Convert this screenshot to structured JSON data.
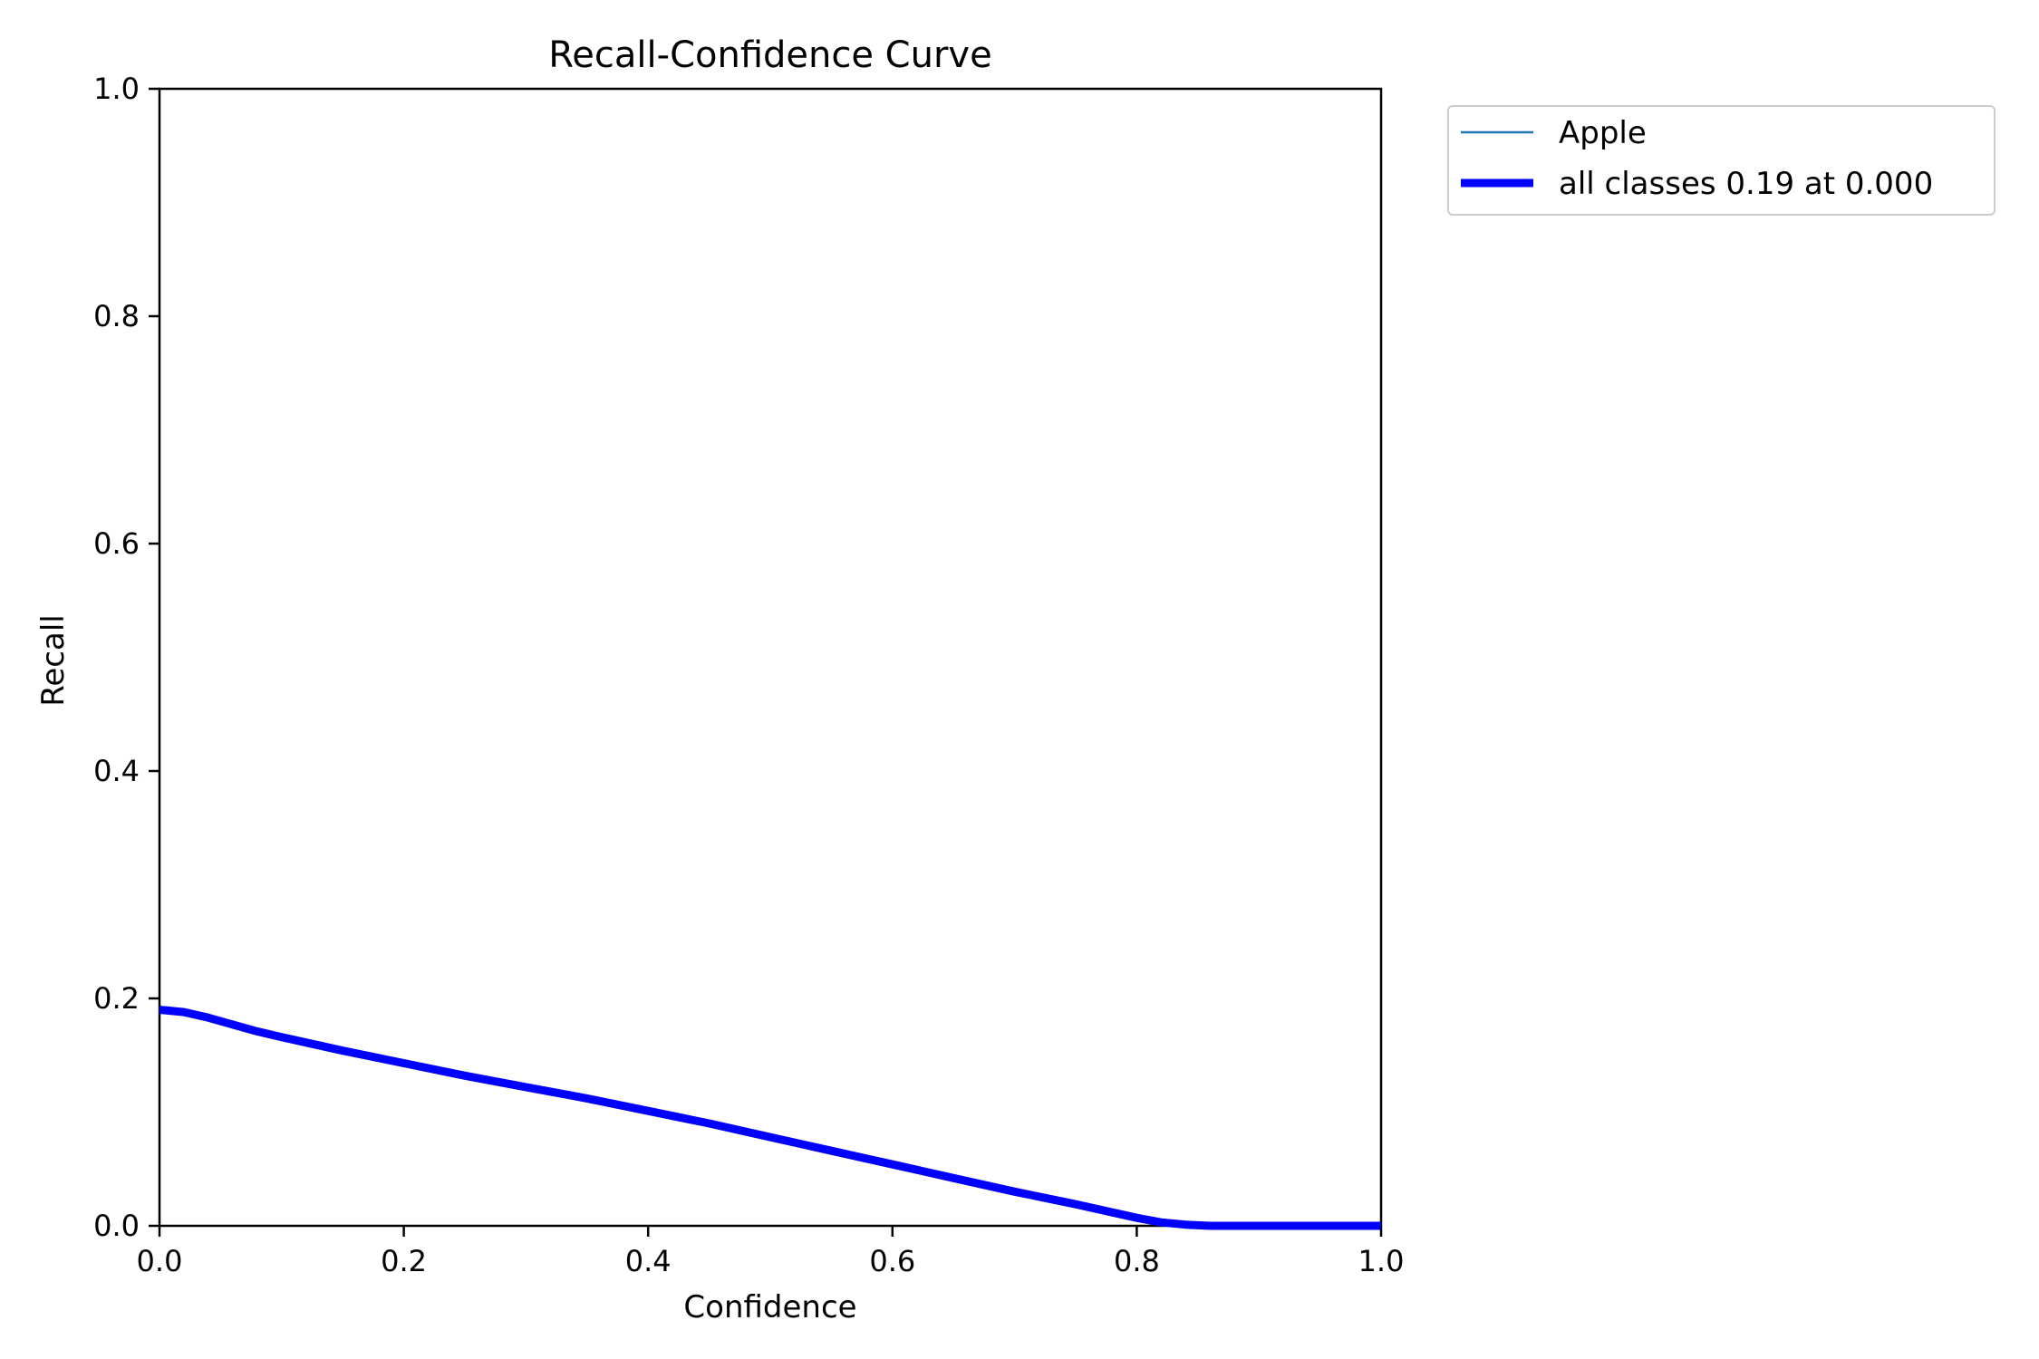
{
  "chart_data": {
    "type": "line",
    "title": "Recall-Confidence Curve",
    "xlabel": "Confidence",
    "ylabel": "Recall",
    "xlim": [
      0.0,
      1.0
    ],
    "ylim": [
      0.0,
      1.0
    ],
    "xticks": [
      "0.0",
      "0.2",
      "0.4",
      "0.6",
      "0.8",
      "1.0"
    ],
    "yticks": [
      "0.0",
      "0.2",
      "0.4",
      "0.6",
      "0.8",
      "1.0"
    ],
    "grid": false,
    "legend_position": "outside upper-right",
    "series": [
      {
        "name": "Apple",
        "color": "#1f77b4",
        "line_style": "thin",
        "x": [
          0.0,
          0.02,
          0.04,
          0.06,
          0.08,
          0.1,
          0.15,
          0.2,
          0.25,
          0.3,
          0.35,
          0.4,
          0.45,
          0.5,
          0.55,
          0.6,
          0.65,
          0.7,
          0.75,
          0.8,
          0.82,
          0.84,
          0.86,
          0.9,
          0.95,
          1.0
        ],
        "y": [
          0.19,
          0.188,
          0.183,
          0.177,
          0.171,
          0.166,
          0.154,
          0.143,
          0.132,
          0.122,
          0.112,
          0.101,
          0.09,
          0.078,
          0.066,
          0.054,
          0.042,
          0.03,
          0.019,
          0.007,
          0.003,
          0.001,
          0.0,
          0.0,
          0.0,
          0.0
        ]
      },
      {
        "name": "all classes 0.19 at 0.000",
        "color": "#0000ff",
        "line_style": "thick",
        "x": [
          0.0,
          0.02,
          0.04,
          0.06,
          0.08,
          0.1,
          0.15,
          0.2,
          0.25,
          0.3,
          0.35,
          0.4,
          0.45,
          0.5,
          0.55,
          0.6,
          0.65,
          0.7,
          0.75,
          0.8,
          0.82,
          0.84,
          0.86,
          0.9,
          0.95,
          1.0
        ],
        "y": [
          0.19,
          0.188,
          0.183,
          0.177,
          0.171,
          0.166,
          0.154,
          0.143,
          0.132,
          0.122,
          0.112,
          0.101,
          0.09,
          0.078,
          0.066,
          0.054,
          0.042,
          0.03,
          0.019,
          0.007,
          0.003,
          0.001,
          0.0,
          0.0,
          0.0,
          0.0
        ]
      }
    ]
  }
}
